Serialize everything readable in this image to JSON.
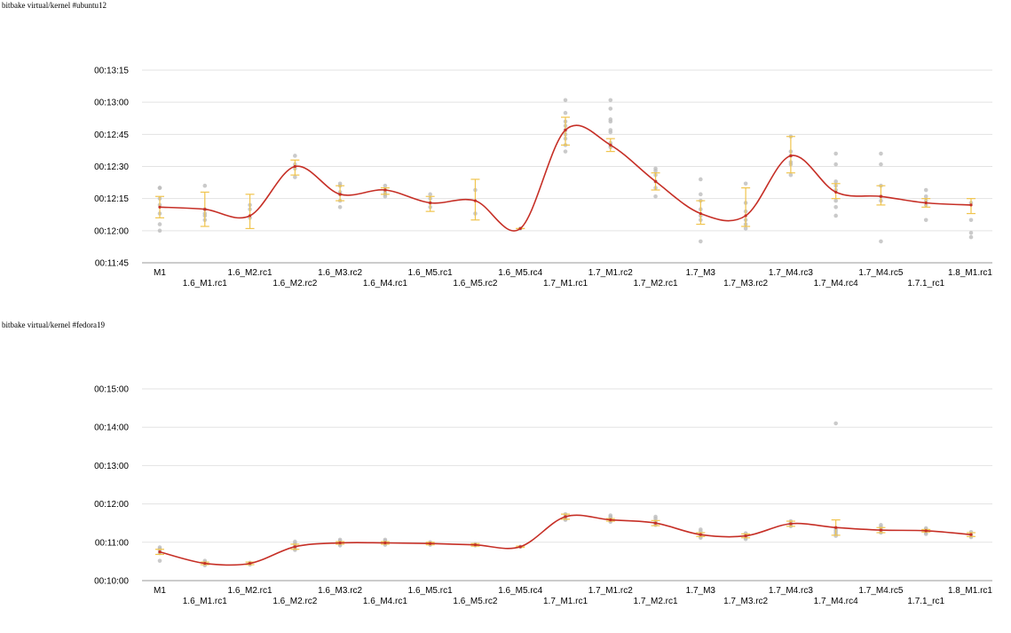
{
  "chart_data": [
    {
      "type": "line",
      "title": "bitbake virtual/kernel #ubuntu12",
      "categories": [
        "M1",
        "1.6_M1.rc1",
        "1.6_M2.rc1",
        "1.6_M2.rc2",
        "1.6_M3.rc2",
        "1.6_M4.rc1",
        "1.6_M5.rc1",
        "1.6_M5.rc2",
        "1.6_M5.rc4",
        "1.7_M1.rc1",
        "1.7_M1.rc2",
        "1.7_M2.rc1",
        "1.7_M3",
        "1.7_M3.rc2",
        "1.7_M4.rc3",
        "1.7_M4.rc4",
        "1.7_M4.rc5",
        "1.7.1_rc1",
        "1.8_M1.rc1"
      ],
      "y_unit": "seconds",
      "ylim": [
        705,
        795
      ],
      "yticks": [
        705,
        720,
        735,
        750,
        765,
        780,
        795
      ],
      "ytick_labels": [
        "00:11:45",
        "00:12:00",
        "00:12:15",
        "00:12:30",
        "00:12:45",
        "00:13:00",
        "00:13:15"
      ],
      "mean": [
        731,
        730,
        727,
        750,
        737,
        739,
        733,
        734,
        721,
        767,
        760,
        743,
        728,
        727,
        755,
        738,
        736,
        733,
        732
      ],
      "err_low": [
        726,
        722,
        721,
        746,
        734,
        737,
        729,
        725,
        721,
        760,
        757,
        739,
        723,
        722,
        747,
        735,
        732,
        731,
        728
      ],
      "err_high": [
        736,
        738,
        737,
        753,
        741,
        740,
        736,
        744,
        721,
        773,
        763,
        747,
        734,
        740,
        764,
        742,
        741,
        735,
        735
      ],
      "samples": [
        [
          720,
          723,
          728,
          732,
          735,
          740,
          740
        ],
        [
          725,
          727,
          728,
          730,
          741
        ],
        [
          726,
          730,
          732
        ],
        [
          745,
          749,
          751,
          755
        ],
        [
          731,
          734,
          737,
          738,
          741,
          742
        ],
        [
          736,
          737,
          738,
          739,
          741
        ],
        [
          731,
          733,
          735,
          737
        ],
        [
          728,
          739
        ],
        [
          721
        ],
        [
          757,
          760,
          763,
          765,
          767,
          769,
          771,
          775,
          781
        ],
        [
          759,
          760,
          761,
          766,
          767,
          771,
          772,
          777,
          781
        ],
        [
          736,
          740,
          743,
          746,
          748,
          749
        ],
        [
          715,
          725,
          727,
          730,
          734,
          737,
          744
        ],
        [
          721,
          723,
          725,
          729,
          733,
          742
        ],
        [
          746,
          751,
          752,
          755,
          757,
          764
        ],
        [
          727,
          731,
          734,
          739,
          741,
          743,
          751,
          756
        ],
        [
          715,
          734,
          736,
          741,
          751,
          756
        ],
        [
          725,
          732,
          734,
          736,
          739
        ],
        [
          717,
          719,
          725,
          733
        ]
      ],
      "colors": {
        "line": "#c62f26",
        "error_bar": "#f0c44c",
        "sample": "#bdbdbd",
        "grid": "#e3e3e3"
      }
    },
    {
      "type": "line",
      "title": "bitbake virtual/kernel #fedora19",
      "categories": [
        "M1",
        "1.6_M1.rc1",
        "1.6_M2.rc1",
        "1.6_M2.rc2",
        "1.6_M3.rc2",
        "1.6_M4.rc1",
        "1.6_M5.rc1",
        "1.6_M5.rc2",
        "1.6_M5.rc4",
        "1.7_M1.rc1",
        "1.7_M1.rc2",
        "1.7_M2.rc1",
        "1.7_M3",
        "1.7_M3.rc2",
        "1.7_M4.rc3",
        "1.7_M4.rc4",
        "1.7_M4.rc5",
        "1.7.1_rc1",
        "1.8_M1.rc1"
      ],
      "y_unit": "seconds",
      "ylim": [
        600,
        900
      ],
      "yticks": [
        600,
        660,
        720,
        780,
        840,
        900
      ],
      "ytick_labels": [
        "00:10:00",
        "00:11:00",
        "00:12:00",
        "00:13:00",
        "00:14:00",
        "00:15:00"
      ],
      "mean": [
        645,
        627,
        627,
        653,
        659,
        659,
        658,
        656,
        653,
        700,
        695,
        690,
        672,
        670,
        689,
        683,
        679,
        678,
        672
      ],
      "err_low": [
        641,
        625,
        625,
        649,
        657,
        657,
        656,
        654,
        652,
        696,
        693,
        686,
        669,
        667,
        685,
        671,
        675,
        676,
        669
      ],
      "err_high": [
        649,
        629,
        629,
        657,
        661,
        661,
        660,
        658,
        654,
        704,
        697,
        694,
        675,
        673,
        693,
        695,
        683,
        680,
        675
      ],
      "samples": [
        [
          631,
          643,
          647,
          650,
          652
        ],
        [
          624,
          627,
          629,
          631
        ],
        [
          625,
          627,
          628
        ],
        [
          648,
          650,
          652,
          655,
          658,
          661
        ],
        [
          655,
          657,
          659,
          661,
          662,
          664
        ],
        [
          656,
          658,
          660,
          662,
          664
        ],
        [
          656,
          658,
          660
        ],
        [
          655,
          657
        ],
        [
          653
        ],
        [
          695,
          697,
          699,
          701,
          704
        ],
        [
          692,
          694,
          696,
          698,
          700,
          702
        ],
        [
          687,
          689,
          691,
          693,
          697,
          700
        ],
        [
          667,
          669,
          671,
          673,
          677,
          680
        ],
        [
          665,
          667,
          669,
          671,
          674
        ],
        [
          685,
          687,
          689,
          691,
          693
        ],
        [
          670,
          673,
          676,
          679,
          682,
          846
        ],
        [
          675,
          678,
          681,
          684,
          687
        ],
        [
          673,
          675,
          677,
          680,
          682
        ],
        [
          668,
          670,
          672,
          676
        ]
      ],
      "colors": {
        "line": "#c62f26",
        "error_bar": "#f0c44c",
        "sample": "#bdbdbd",
        "grid": "#e3e3e3"
      }
    }
  ]
}
